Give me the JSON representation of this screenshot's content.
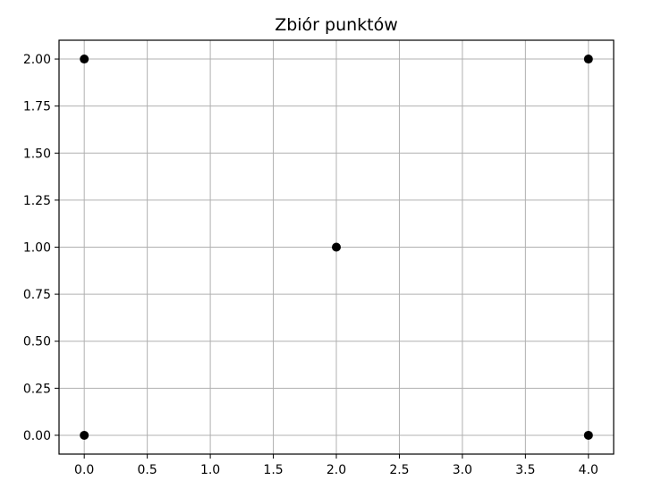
{
  "chart_data": {
    "type": "scatter",
    "title": "Zbiór punktów",
    "xlabel": "",
    "ylabel": "",
    "xlim": [
      -0.2,
      4.2
    ],
    "ylim": [
      -0.1,
      2.1
    ],
    "x_ticks": [
      0.0,
      0.5,
      1.0,
      1.5,
      2.0,
      2.5,
      3.0,
      3.5,
      4.0
    ],
    "x_tick_labels": [
      "0.0",
      "0.5",
      "1.0",
      "1.5",
      "2.0",
      "2.5",
      "3.0",
      "3.5",
      "4.0"
    ],
    "y_ticks": [
      0.0,
      0.25,
      0.5,
      0.75,
      1.0,
      1.25,
      1.5,
      1.75,
      2.0
    ],
    "y_tick_labels": [
      "0.00",
      "0.25",
      "0.50",
      "0.75",
      "1.00",
      "1.25",
      "1.50",
      "1.75",
      "2.00"
    ],
    "grid": true,
    "legend": false,
    "points_color": "#000000",
    "series": [
      {
        "x": [
          0,
          4,
          0,
          4,
          2
        ],
        "y": [
          0,
          0,
          2,
          2,
          1
        ]
      }
    ]
  }
}
